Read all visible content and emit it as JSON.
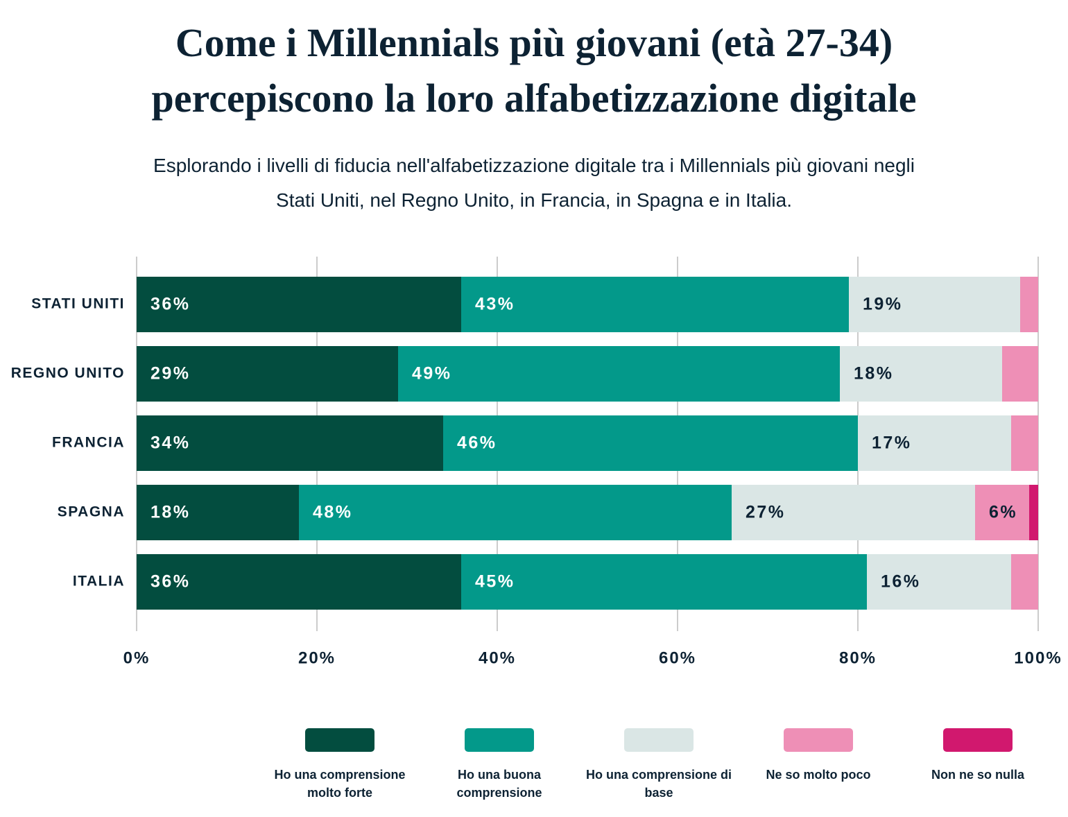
{
  "chart_data": {
    "type": "stacked-bar-horizontal",
    "title": "Come i Millennials più giovani (età 27-34) percepiscono la loro alfabetizzazione digitale",
    "subtitle": "Esplorando i livelli di fiducia nell'alfabetizzazione digitale tra i Millennials più giovani negli Stati Uniti, nel Regno Unito, in Francia, in Spagna e in Italia.",
    "categories": [
      "STATI UNITI",
      "REGNO UNITO",
      "FRANCIA",
      "SPAGNA",
      "ITALIA"
    ],
    "series": [
      {
        "name": "Ho una comprensione molto forte",
        "color": "#034d3f",
        "values": [
          36,
          29,
          34,
          18,
          36
        ],
        "value_labels": [
          "36%",
          "29%",
          "34%",
          "18%",
          "36%"
        ]
      },
      {
        "name": "Ho una buona comprensione",
        "color": "#03998a",
        "values": [
          43,
          49,
          46,
          48,
          45
        ],
        "value_labels": [
          "43%",
          "49%",
          "46%",
          "48%",
          "45%"
        ]
      },
      {
        "name": "Ho una comprensione di base",
        "color": "#dae6e5",
        "values": [
          19,
          18,
          17,
          27,
          16
        ],
        "value_labels": [
          "19%",
          "18%",
          "17%",
          "27%",
          "16%"
        ]
      },
      {
        "name": "Ne so molto poco",
        "color": "#ee8fb6",
        "values": [
          2,
          4,
          3,
          6,
          3
        ],
        "value_labels": [
          null,
          null,
          null,
          "6%",
          null
        ]
      },
      {
        "name": "Non ne so nulla",
        "color": "#d1186e",
        "values": [
          0,
          0,
          0,
          1,
          0
        ],
        "value_labels": [
          null,
          null,
          null,
          null,
          null
        ]
      }
    ],
    "xlim": [
      0,
      100
    ],
    "xticks": [
      {
        "value": 0,
        "label": "0%"
      },
      {
        "value": 20,
        "label": "20%"
      },
      {
        "value": 40,
        "label": "40%"
      },
      {
        "value": 60,
        "label": "60%"
      },
      {
        "value": 80,
        "label": "80%"
      },
      {
        "value": 100,
        "label": "100%"
      }
    ],
    "grid": true
  }
}
